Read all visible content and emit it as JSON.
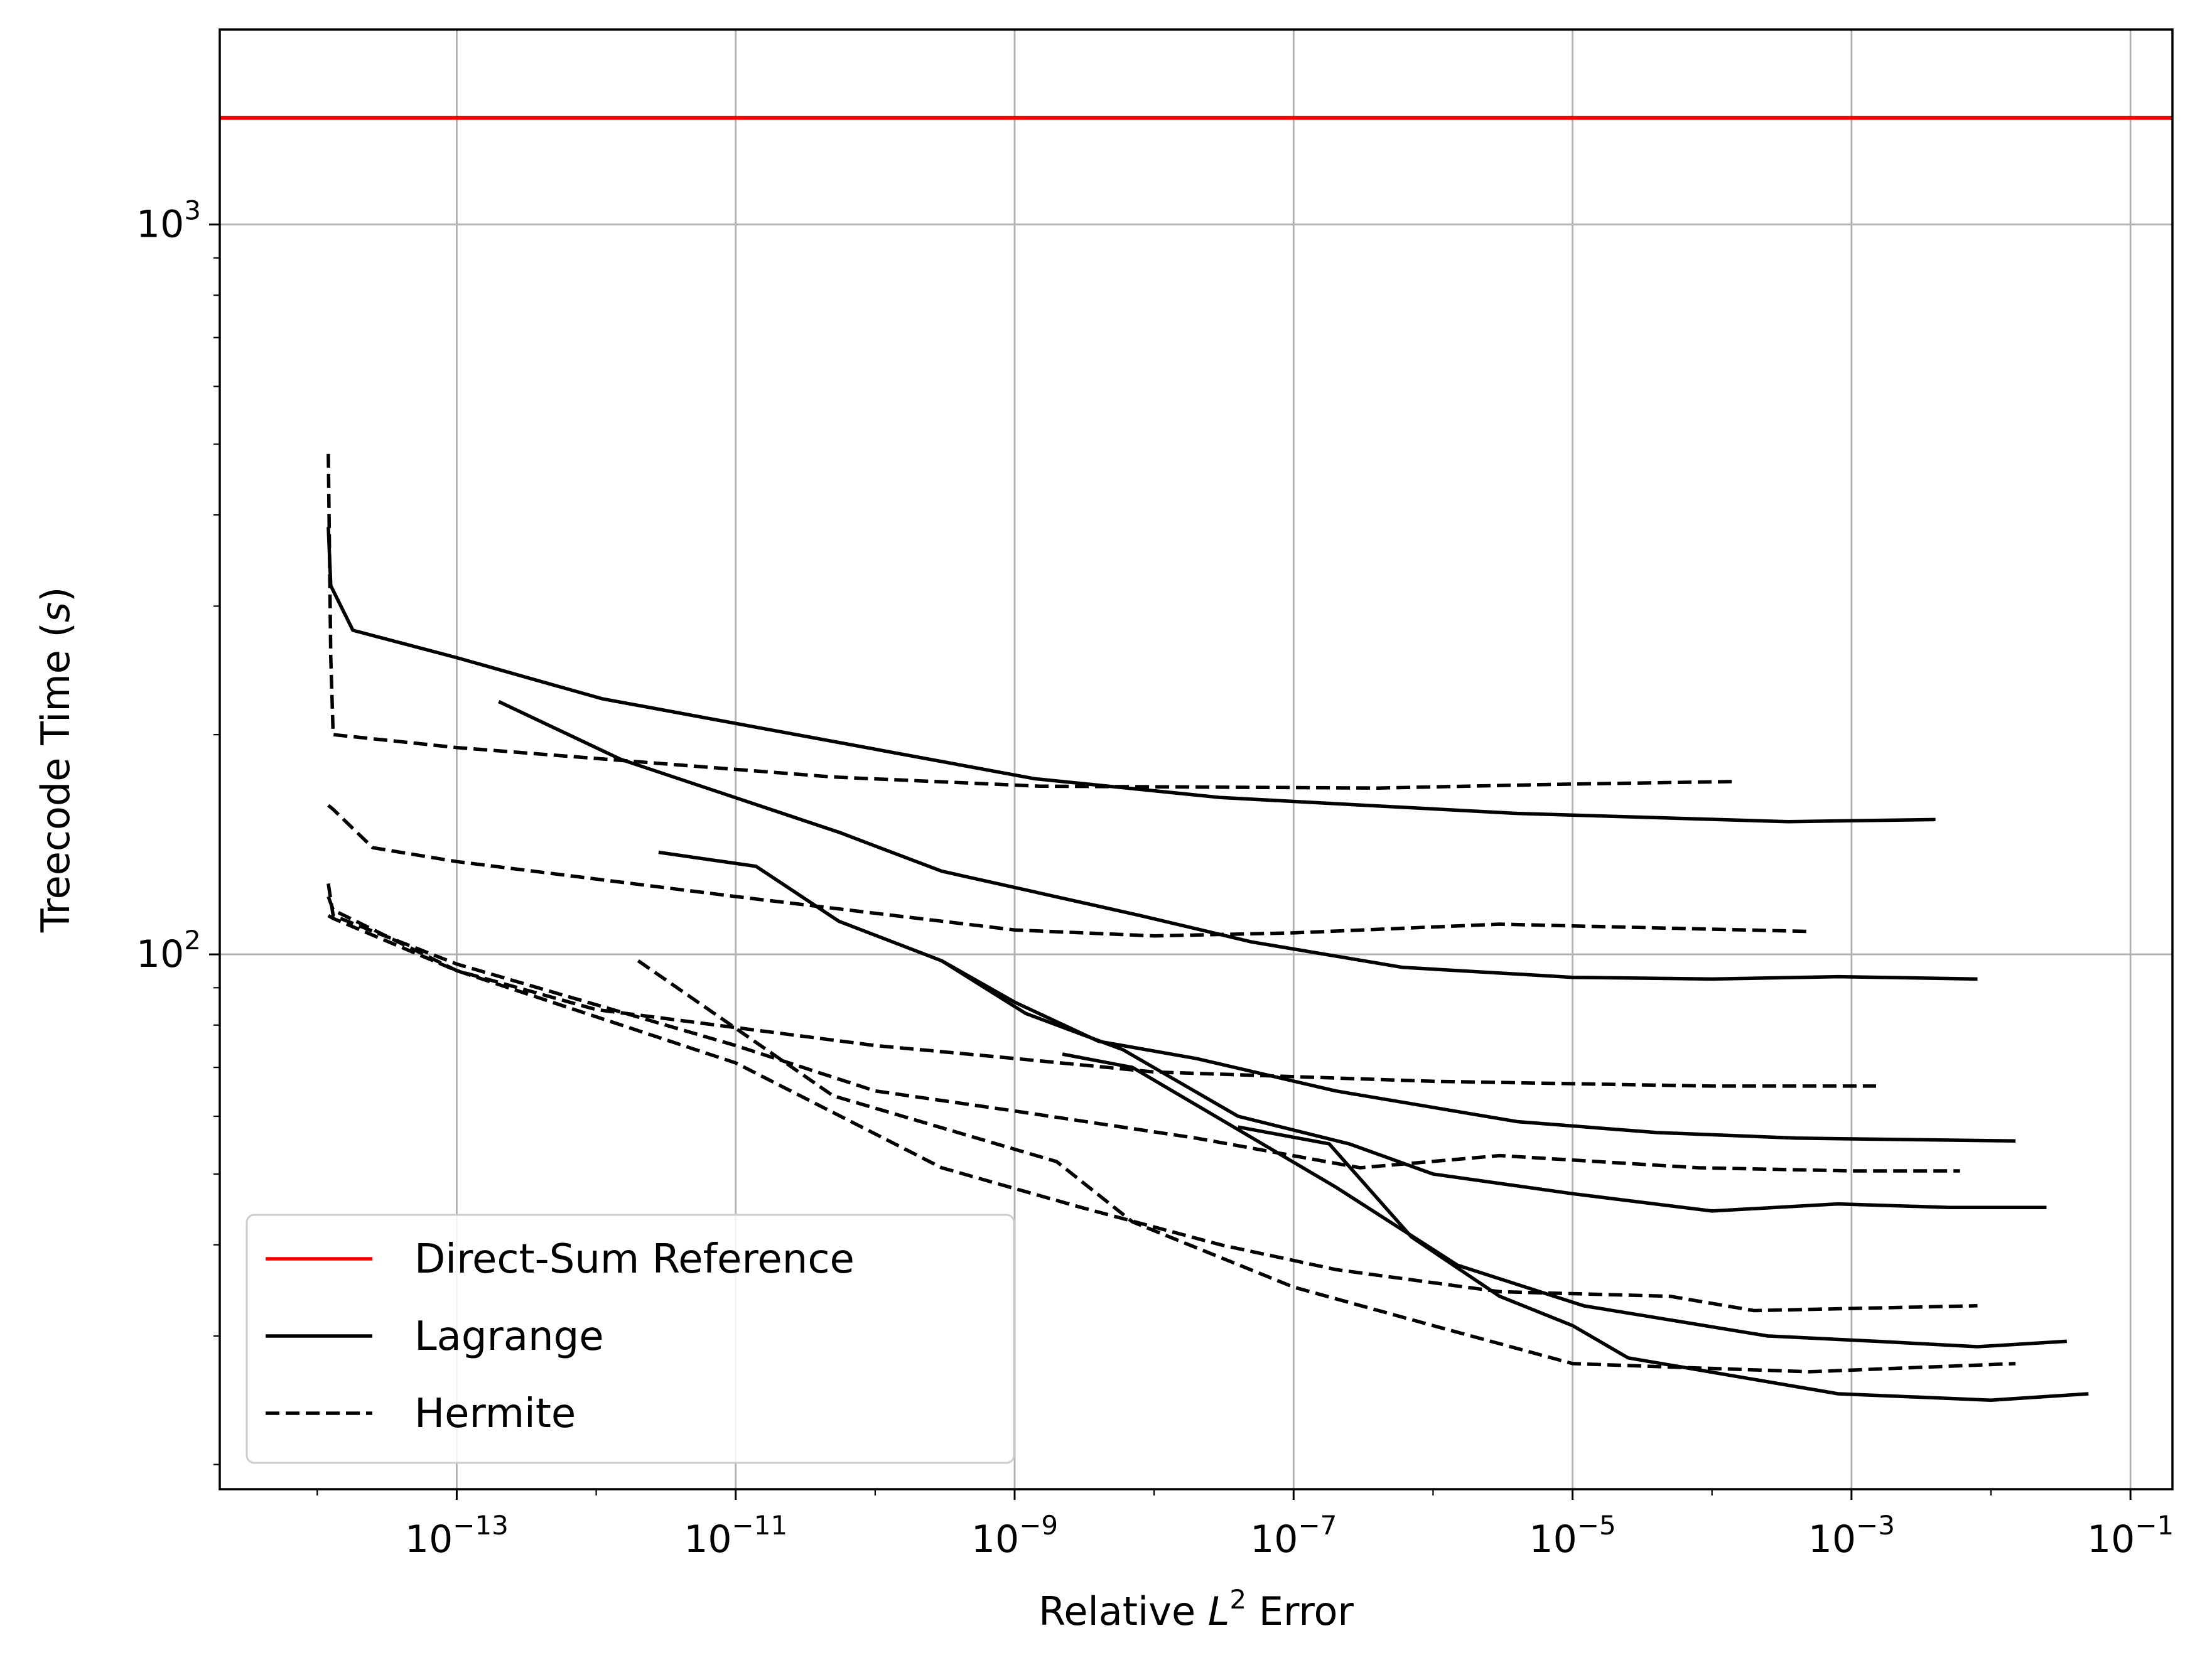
{
  "chart_data": {
    "type": "line",
    "xlabel": {
      "pre": "Relative ",
      "var": "L",
      "sup": "2",
      "post": " Error"
    },
    "ylabel": {
      "pre": "Treecode Time (",
      "var": "s",
      "post": ")"
    },
    "x_scale": "log",
    "y_scale": "log",
    "xlim": [
      2e-15,
      0.2
    ],
    "ylim": [
      18.5,
      1850
    ],
    "grid": true,
    "x_ticks": [
      {
        "value": 1e-13,
        "base": "10",
        "exp": "−13"
      },
      {
        "value": 1e-11,
        "base": "10",
        "exp": "−11"
      },
      {
        "value": 1e-09,
        "base": "10",
        "exp": "−9"
      },
      {
        "value": 1e-07,
        "base": "10",
        "exp": "−7"
      },
      {
        "value": 1e-05,
        "base": "10",
        "exp": "−5"
      },
      {
        "value": 0.001,
        "base": "10",
        "exp": "−3"
      },
      {
        "value": 0.1,
        "base": "10",
        "exp": "−1"
      }
    ],
    "y_ticks": [
      {
        "value": 100,
        "base": "10",
        "exp": "2"
      },
      {
        "value": 1000,
        "base": "10",
        "exp": "3"
      }
    ],
    "legend": {
      "placement": "lower-left",
      "entries": [
        {
          "label": "Direct-Sum Reference",
          "color": "#ff0000",
          "style": "solid"
        },
        {
          "label": "Lagrange",
          "color": "#000000",
          "style": "solid"
        },
        {
          "label": "Hermite",
          "color": "#000000",
          "style": "dashed"
        }
      ]
    },
    "reference": {
      "name": "Direct-Sum Reference",
      "y": 1400,
      "color": "#ff0000"
    },
    "series": [
      {
        "group": "Lagrange",
        "style": "solid",
        "x": [
          1.2e-14,
          1.25e-14,
          1.8e-14,
          1e-13,
          1.1e-12,
          1.4e-09,
          3e-08,
          4e-06,
          0.00035,
          0.004
        ],
        "y": [
          385,
          320,
          278,
          255,
          224,
          174,
          164,
          156,
          152,
          153
        ]
      },
      {
        "group": "Lagrange",
        "style": "solid",
        "x": [
          2e-13,
          1.5e-12,
          1.2e-11,
          5.5e-11,
          3e-10,
          8e-09,
          5e-08,
          6e-07,
          1e-05,
          0.0001,
          0.0008,
          0.008
        ],
        "y": [
          222,
          185,
          162,
          147,
          130,
          113,
          104,
          96,
          93,
          92.5,
          93.2,
          92.5
        ]
      },
      {
        "group": "Lagrange",
        "style": "solid",
        "x": [
          2.8e-12,
          1.4e-11,
          5.5e-11,
          3e-10,
          1e-09,
          4e-09,
          2e-08,
          2e-07,
          4e-06,
          4e-05,
          0.0004,
          0.015
        ],
        "y": [
          138,
          132,
          111,
          98,
          86,
          76,
          72,
          65,
          59,
          57,
          56,
          55.5
        ]
      },
      {
        "group": "Lagrange",
        "style": "solid",
        "x": [
          3e-10,
          1.2e-09,
          6e-09,
          4e-08,
          2.5e-07,
          1e-06,
          1e-05,
          0.0001,
          0.0008,
          0.005,
          0.025
        ],
        "y": [
          98,
          83,
          74,
          60,
          55,
          50,
          47,
          44.5,
          45.5,
          45,
          45
        ]
      },
      {
        "group": "Lagrange",
        "style": "solid",
        "x": [
          2.2e-09,
          7e-09,
          2e-07,
          1.5e-06,
          1.2e-05,
          0.00025,
          0.0015,
          0.008,
          0.035
        ],
        "y": [
          73,
          70,
          48,
          37.5,
          33,
          30,
          29.5,
          29,
          29.5
        ]
      },
      {
        "group": "Lagrange",
        "style": "solid",
        "x": [
          4e-08,
          1.8e-07,
          7e-07,
          3e-06,
          1e-05,
          2.5e-05,
          0.0008,
          0.01,
          0.05
        ],
        "y": [
          58,
          55,
          41,
          34,
          31,
          28,
          25,
          24.5,
          25
        ]
      },
      {
        "group": "Hermite",
        "style": "dashed",
        "x": [
          1.2e-14,
          1.25e-14,
          1.3e-14,
          1e-13,
          5e-11,
          1.5e-09,
          4e-07,
          8e-06,
          0.00015
        ],
        "y": [
          485,
          255,
          200,
          192,
          175,
          170,
          169,
          171,
          172.5
        ]
      },
      {
        "group": "Hermite",
        "style": "dashed",
        "x": [
          1.2e-14,
          1.3e-14,
          2.5e-14,
          1e-13,
          1e-11,
          1e-09,
          1e-08,
          1e-07,
          3e-06,
          0.0005
        ],
        "y": [
          160,
          158,
          140,
          134,
          120,
          108,
          106,
          107,
          110,
          107.5
        ]
      },
      {
        "group": "Hermite",
        "style": "dashed",
        "x": [
          1.2e-14,
          1.3e-14,
          1e-13,
          1e-12,
          1e-10,
          1e-09,
          1e-08,
          1e-06,
          0.0001,
          0.0015
        ],
        "y": [
          120,
          115,
          95,
          84,
          75,
          72,
          69,
          67,
          66,
          66
        ]
      },
      {
        "group": "Hermite",
        "style": "dashed",
        "x": [
          1.2e-14,
          1.3e-14,
          1e-13,
          1e-11,
          1e-10,
          1e-09,
          2e-08,
          3e-07,
          3e-06,
          8e-05,
          0.001,
          0.006
        ],
        "y": [
          125,
          113,
          97,
          75,
          65,
          61,
          56,
          51,
          53,
          51,
          50.5,
          50.5
        ]
      },
      {
        "group": "Hermite",
        "style": "dashed",
        "x": [
          1.2e-14,
          1.3e-14,
          1e-13,
          1e-11,
          3e-10,
          3e-09,
          3e-08,
          2e-07,
          3e-06,
          5e-05,
          0.0002,
          0.008
        ],
        "y": [
          113,
          112,
          95,
          71,
          51,
          45,
          40,
          37,
          34.5,
          34,
          32.5,
          33
        ]
      },
      {
        "group": "Hermite",
        "style": "dashed",
        "x": [
          2e-12,
          5e-11,
          2e-09,
          7e-09,
          1e-07,
          1e-06,
          1e-05,
          5e-05,
          0.0005,
          0.015
        ],
        "y": [
          98,
          64,
          52,
          43,
          35,
          31,
          27.5,
          27.2,
          26.8,
          27.5
        ]
      }
    ]
  }
}
